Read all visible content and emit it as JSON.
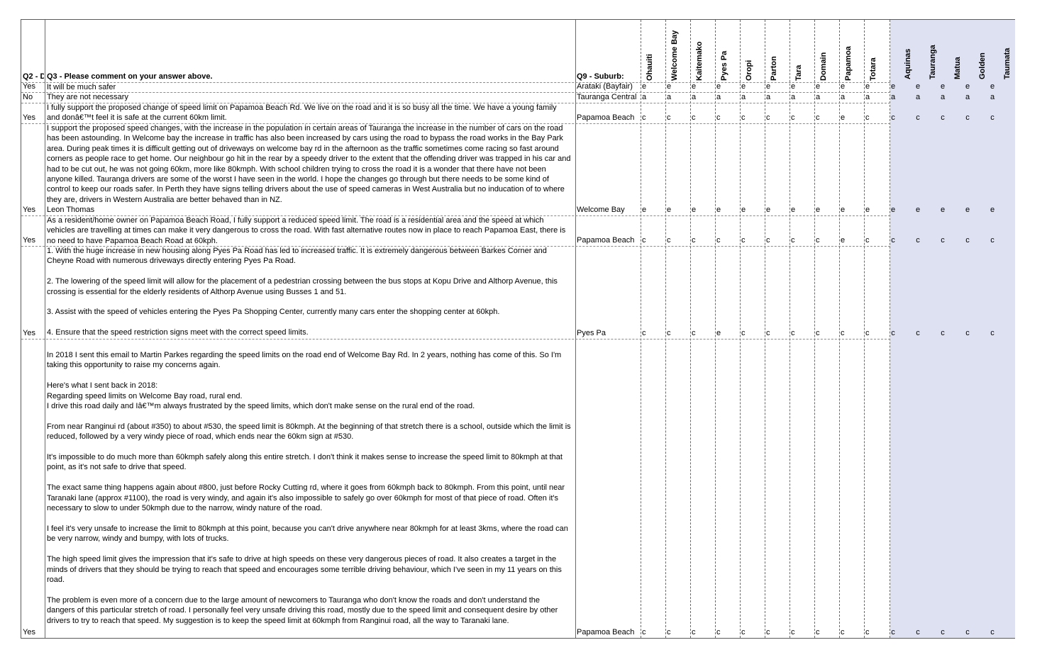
{
  "headers": {
    "q2": "Q2 - D",
    "q3": "Q3 - Please comment on your answer above.",
    "q9": "Q9 - Suburb:",
    "areas": [
      "Ohauiti",
      "Welcome Bay",
      "Kaitemako",
      "Pyes Pa",
      "Oropi",
      "Parton",
      "Tara",
      "Domain",
      "Papamoa",
      "Totara"
    ],
    "shaded_areas": [
      "Aquinas",
      "Tauranga",
      "Matua",
      "Golden",
      "Taumata"
    ]
  },
  "rows": [
    {
      "q2": "Yes",
      "comment": "It will be much safer",
      "suburb": "Arataki (Bayfair)",
      "areas": [
        "e",
        "e",
        "e",
        "e",
        "e",
        "e",
        "e",
        "e",
        "e",
        "e"
      ],
      "shaded": [
        "e",
        "e",
        "e",
        "e",
        "e"
      ]
    },
    {
      "q2": "No",
      "comment": "They are not necessary",
      "suburb": "Tauranga Central",
      "areas": [
        "a",
        "a",
        "a",
        "a",
        "a",
        "a",
        "a",
        "a",
        "a",
        "a"
      ],
      "shaded": [
        "a",
        "a",
        "a",
        "a",
        "a"
      ]
    },
    {
      "q2": "Yes",
      "comment": "I fully support the proposed change of speed limit on Papamoa Beach Rd. We live on the road and it is so busy all the time. We have a young family\nand donâ€™t feel it is safe at the current 60km limit.",
      "suburb": "Papamoa Beach",
      "areas": [
        "c",
        "c",
        "c",
        "c",
        "c",
        "c",
        "c",
        "c",
        "e",
        "c"
      ],
      "shaded": [
        "c",
        "c",
        "c",
        "c",
        "c"
      ]
    },
    {
      "q2": "Yes",
      "comment": "I support the proposed speed changes, with the increase in the population in certain areas of Tauranga the increase in the number of cars on the road\nhas been astounding. In Welcome bay the increase in traffic has also been increased by cars using the road to bypass the road works in the Bay Park\narea. During peak times it is difficult getting out of driveways on welcome bay rd in the afternoon as the traffic sometimes come racing so fast around\ncorners as people race to get home. Our neighbour go hit in the rear by a speedy driver to the extent that the offending driver was trapped in his car and\nhad to be cut out, he was not going 60km, more like 80kmph. With school children trying to cross the road it is a wonder that there have not been\nanyone killed. Tauranga drivers are some of the worst I have seen in the world. I hope the changes go through but there needs to be some kind of\ncontrol to keep our roads safer. In Perth they have signs telling drivers about the use of speed cameras in West Australia but no inducation of to where\nthey are, drivers in Western Australia are better behaved than in NZ.\nLeon Thomas",
      "suburb": "Welcome Bay",
      "areas": [
        "e",
        "e",
        "e",
        "e",
        "e",
        "e",
        "e",
        "e",
        "e",
        "e"
      ],
      "shaded": [
        "e",
        "e",
        "e",
        "e",
        "e"
      ]
    },
    {
      "q2": "Yes",
      "comment": "As a resident/home owner on Papamoa Beach Road, I fully support a reduced speed limit. The road is a residential area and the speed at which\nvehicles are travelling at times can make it very dangerous to cross the road. With fast alternative routes now in place to reach Papamoa East, there is\nno need to have Papamoa Beach Road at 60kph.",
      "suburb": "Papamoa Beach",
      "areas": [
        "c",
        "c",
        "c",
        "c",
        "c",
        "c",
        "c",
        "c",
        "e",
        "c"
      ],
      "shaded": [
        "c",
        "c",
        "c",
        "c",
        "c"
      ]
    },
    {
      "q2": "Yes",
      "comment": "1. With the huge increase in new housing along Pyes Pa Road has led to increased traffic. It is extremely dangerous between Barkes Corner and\nCheyne Road with numerous driveways directly entering Pyes Pa Road.\n\n2. The lowering of the speed limit will allow for the placement of a pedestrian crossing between the bus stops at Kopu Drive and Althorp Avenue, this\ncrossing is essential for the elderly residents of Althorp Avenue using Busses 1 and 51.\n\n3. Assist with the speed of vehicles entering the Pyes Pa Shopping Center, currently many cars enter the shopping center at 60kph.\n\n4. Ensure that the speed restriction signs meet with the correct speed limits.",
      "suburb": "Pyes Pa",
      "areas": [
        "c",
        "c",
        "c",
        "e",
        "c",
        "c",
        "c",
        "c",
        "c",
        "c"
      ],
      "shaded": [
        "c",
        "c",
        "c",
        "c",
        "c"
      ]
    },
    {
      "q2": "Yes",
      "comment": "In 2018 I sent this email to Martin Parkes regarding the speed limits on the road end of Welcome Bay Rd. In 2 years, nothing has come of this. So I'm\ntaking this opportunity to raise my concerns again.\n\nHere's what I sent back in 2018:\nRegarding speed limits on Welcome Bay road, rural end.\nI drive this road daily and Iâ€™m always frustrated by the speed limits, which don't make sense on the rural end of the road.\n\nFrom near Ranginui rd (about #350) to about #530, the speed limit is 80kmph. At the beginning of that stretch there is a school, outside which the limit is\nreduced, followed by a very windy piece of road, which ends near the 60km sign at #530.\n\nIt's impossible to do much more than 60kmph safely along this entire stretch. I don't think it makes sense to increase the speed limit to 80kmph at that\npoint, as it's not safe to drive that speed.\n\nThe exact same thing happens again about #800, just before Rocky Cutting rd, where it goes from 60kmph back to 80kmph. From this point, until near\nTaranaki lane (approx #1100), the road is very windy, and again it's also impossible to safely go over 60kmph for most of that piece of road. Often it's\nnecessary to slow to under 50kmph due to the narrow, windy nature of the road.\n\nI feel it's very unsafe to increase the limit to 80kmph at this point, because you can't drive anywhere near 80kmph for at least 3kms, where the road can\nbe very narrow, windy and bumpy, with lots of trucks.\n\nThe high speed limit gives the impression that it's safe to drive at high speeds on these very dangerous pieces of road. It also creates a target in the\nminds of drivers that they should be trying to reach that speed and encourages some terrible driving behaviour, which I've seen in my 11 years on this\nroad.\n\nThe problem is even more of a concern due to the large amount of newcomers to Tauranga who don't know the roads and don't understand the\ndangers of this particular stretch of road. I personally feel very unsafe driving this road, mostly due to the speed limit and consequent desire by other\ndrivers to try to reach that speed. My suggestion is to keep the speed limit at 60kmph from Ranginui road, all the way to Taranaki lane.",
      "suburb": "Papamoa Beach",
      "areas": [
        "c",
        "c",
        "c",
        "c",
        "c",
        "c",
        "c",
        "c",
        "c",
        "c"
      ],
      "shaded": [
        "c",
        "c",
        "c",
        "c",
        "c"
      ]
    }
  ]
}
